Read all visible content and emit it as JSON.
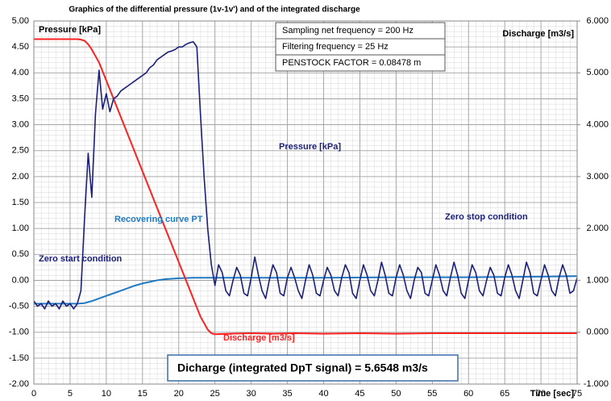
{
  "chart_data": {
    "type": "line",
    "title": "Graphics of the differential pressure (1v-1v')  and of the integrated discharge",
    "xlabel": "Time [sec]",
    "ylabel": "Pressure [kPa]",
    "y2label": "Discharge [m3/s]",
    "xlim": [
      0,
      75
    ],
    "xticks": [
      0,
      5,
      10,
      15,
      20,
      25,
      30,
      35,
      40,
      45,
      50,
      55,
      60,
      65,
      70,
      75
    ],
    "ylim": [
      -2,
      5
    ],
    "yticks": [
      {
        "value": -2,
        "label": "-2.00"
      },
      {
        "value": -1.5,
        "label": "-1.50"
      },
      {
        "value": -1,
        "label": "-1.00"
      },
      {
        "value": -0.5,
        "label": "-0.50"
      },
      {
        "value": 0,
        "label": "0.00"
      },
      {
        "value": 0.5,
        "label": "0.50"
      },
      {
        "value": 1,
        "label": "1.00"
      },
      {
        "value": 1.5,
        "label": "1.50"
      },
      {
        "value": 2,
        "label": "2.00"
      },
      {
        "value": 2.5,
        "label": "2.50"
      },
      {
        "value": 3,
        "label": "3.00"
      },
      {
        "value": 3.5,
        "label": "3.50"
      },
      {
        "value": 4,
        "label": "4.00"
      },
      {
        "value": 4.5,
        "label": "4.50"
      },
      {
        "value": 5,
        "label": "5.00"
      }
    ],
    "y2lim": [
      -1,
      6
    ],
    "y2ticks": [
      {
        "value": -1,
        "label": "-1.000"
      },
      {
        "value": 0,
        "label": "0.000"
      },
      {
        "value": 1,
        "label": "1.000"
      },
      {
        "value": 2,
        "label": "2.000"
      },
      {
        "value": 3,
        "label": "3.000"
      },
      {
        "value": 4,
        "label": "4.000"
      },
      {
        "value": 5,
        "label": "5.000"
      },
      {
        "value": 6,
        "label": "6.000"
      }
    ],
    "grid": true,
    "annotations": [
      "Zero start condition",
      "Zero stop condition",
      "Sampling net frequency =  200 Hz",
      "Filtering frequency  =  25 Hz",
      "PENSTOCK FACTOR = 0.08478 m",
      "Dicharge (integrated DpT signal)  = 5.6548 m3/s"
    ],
    "series": [
      {
        "name": "Pressure [kPa]",
        "color": "#1b1f7a",
        "x": [
          0,
          0.5,
          1,
          1.5,
          2,
          2.5,
          3,
          3.5,
          4,
          4.5,
          5,
          5.5,
          6,
          6.5,
          7,
          7.5,
          8,
          8.5,
          9,
          9.5,
          10,
          10.5,
          11,
          11.5,
          12,
          12.5,
          13,
          13.5,
          14,
          14.5,
          15,
          15.5,
          16,
          16.5,
          17,
          17.5,
          18,
          18.5,
          19,
          19.5,
          20,
          20.5,
          21,
          21.5,
          22,
          22.5,
          23,
          23.5,
          24,
          24.5,
          25,
          25.5,
          26,
          26.5,
          27,
          27.5,
          28,
          28.5,
          29,
          29.5,
          30,
          30.5,
          31,
          31.5,
          32,
          32.5,
          33,
          33.5,
          34,
          34.5,
          35,
          35.5,
          36,
          36.5,
          37,
          37.5,
          38,
          38.5,
          39,
          39.5,
          40,
          40.5,
          41,
          41.5,
          42,
          42.5,
          43,
          43.5,
          44,
          44.5,
          45,
          45.5,
          46,
          46.5,
          47,
          47.5,
          48,
          48.5,
          49,
          49.5,
          50,
          50.5,
          51,
          51.5,
          52,
          52.5,
          53,
          53.5,
          54,
          54.5,
          55,
          55.5,
          56,
          56.5,
          57,
          57.5,
          58,
          58.5,
          59,
          59.5,
          60,
          60.5,
          61,
          61.5,
          62,
          62.5,
          63,
          63.5,
          64,
          64.5,
          65,
          65.5,
          66,
          66.5,
          67,
          67.5,
          68,
          68.5,
          69,
          69.5,
          70,
          70.5,
          71,
          71.5,
          72,
          72.5,
          73,
          73.5,
          74,
          74.5,
          75
        ],
        "values": [
          -0.4,
          -0.5,
          -0.45,
          -0.55,
          -0.4,
          -0.5,
          -0.45,
          -0.55,
          -0.4,
          -0.5,
          -0.45,
          -0.55,
          -0.45,
          -0.2,
          1.2,
          2.45,
          1.6,
          3.2,
          4.05,
          3.3,
          3.6,
          3.25,
          3.5,
          3.55,
          3.65,
          3.7,
          3.75,
          3.8,
          3.85,
          3.9,
          3.95,
          4.0,
          4.1,
          4.15,
          4.25,
          4.3,
          4.35,
          4.4,
          4.42,
          4.45,
          4.5,
          4.5,
          4.55,
          4.58,
          4.6,
          4.5,
          3.2,
          2.0,
          1.0,
          0.3,
          -0.1,
          0.3,
          0.15,
          -0.2,
          -0.3,
          0.0,
          0.25,
          0.1,
          -0.25,
          -0.3,
          0.05,
          0.45,
          0.1,
          -0.2,
          -0.35,
          0.0,
          0.3,
          0.15,
          -0.25,
          -0.3,
          0.05,
          0.25,
          0.05,
          -0.2,
          -0.35,
          0.0,
          0.3,
          0.1,
          -0.25,
          -0.3,
          0.0,
          0.25,
          0.1,
          -0.2,
          -0.3,
          0.05,
          0.3,
          0.15,
          -0.25,
          -0.35,
          0.0,
          0.3,
          0.1,
          -0.2,
          -0.3,
          0.0,
          0.35,
          0.1,
          -0.25,
          -0.3,
          0.05,
          0.3,
          0.1,
          -0.2,
          -0.35,
          0.0,
          0.25,
          0.15,
          -0.25,
          -0.3,
          0.0,
          0.3,
          0.1,
          -0.2,
          -0.3,
          0.05,
          0.35,
          0.1,
          -0.25,
          -0.35,
          0.0,
          0.3,
          0.15,
          -0.2,
          -0.3,
          0.0,
          0.25,
          0.1,
          -0.25,
          -0.3,
          0.05,
          0.3,
          0.1,
          -0.2,
          -0.35,
          0.0,
          0.35,
          0.15,
          -0.25,
          -0.3,
          0.0,
          0.3,
          0.1,
          -0.2,
          -0.3,
          0.05,
          0.3,
          0.1,
          -0.25,
          -0.2,
          0.05
        ]
      },
      {
        "name": "Discharge [m3/s]",
        "color": "#ff2020",
        "axis": "y2",
        "x": [
          0,
          6,
          6.5,
          7,
          7.5,
          8,
          9,
          10,
          11,
          12,
          13,
          14,
          15,
          16,
          17,
          18,
          19,
          20,
          21,
          22,
          23,
          24,
          24.5,
          25,
          27,
          30,
          33,
          36,
          40,
          45,
          50,
          55,
          60,
          65,
          70,
          75
        ],
        "values": [
          5.65,
          5.65,
          5.64,
          5.62,
          5.55,
          5.45,
          5.2,
          4.85,
          4.5,
          4.15,
          3.8,
          3.45,
          3.1,
          2.75,
          2.4,
          2.05,
          1.7,
          1.35,
          1.0,
          0.65,
          0.3,
          0.05,
          -0.02,
          -0.04,
          -0.03,
          -0.02,
          -0.03,
          -0.02,
          -0.03,
          -0.02,
          -0.03,
          -0.02,
          -0.02,
          -0.02,
          -0.02,
          -0.02
        ]
      },
      {
        "name": "Recovering curve PT",
        "color": "#1f7ac4",
        "x": [
          0,
          6,
          7,
          8,
          9,
          10,
          11,
          12,
          13,
          14,
          15,
          16,
          17,
          18,
          19,
          20,
          22,
          25,
          30,
          40,
          50,
          60,
          70,
          75
        ],
        "values": [
          -0.45,
          -0.45,
          -0.44,
          -0.4,
          -0.35,
          -0.3,
          -0.25,
          -0.2,
          -0.15,
          -0.1,
          -0.06,
          -0.03,
          0.0,
          0.02,
          0.03,
          0.04,
          0.05,
          0.05,
          0.05,
          0.05,
          0.06,
          0.06,
          0.07,
          0.08
        ]
      }
    ]
  }
}
